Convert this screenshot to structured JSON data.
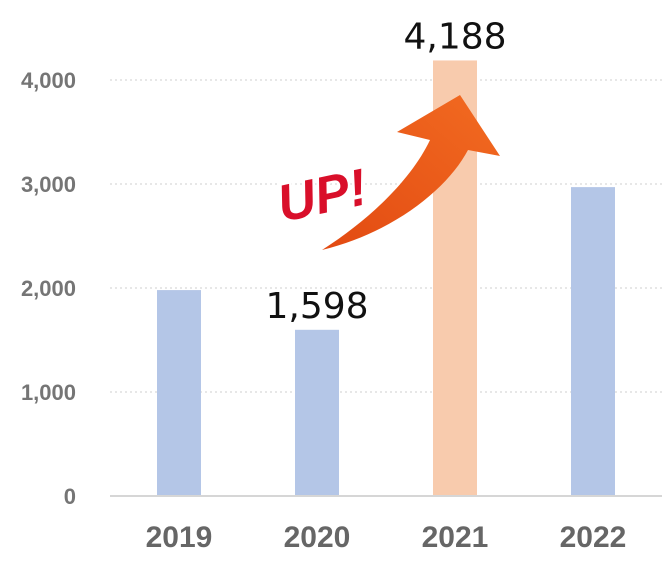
{
  "chart_data": {
    "type": "bar",
    "categories": [
      "2019",
      "2020",
      "2021",
      "2022"
    ],
    "values": [
      1980,
      1598,
      4188,
      2970
    ],
    "ylim": [
      0,
      4000
    ],
    "yticks": [
      {
        "value": 0,
        "label": "0"
      },
      {
        "value": 1000,
        "label": "1,000"
      },
      {
        "value": 2000,
        "label": "2,000"
      },
      {
        "value": 3000,
        "label": "3,000"
      },
      {
        "value": 4000,
        "label": "4,000"
      }
    ],
    "data_labels": [
      {
        "index": 1,
        "text": "1,598"
      },
      {
        "index": 2,
        "text": "4,188"
      }
    ],
    "annotation": {
      "text": "UP!",
      "arrow_color": "#e8531a",
      "text_color": "#d90f2a"
    },
    "grid": true,
    "legend": "none",
    "colors": {
      "default_bar": "#b4c6e7",
      "highlight_bar": "#f8cbad",
      "highlight_index": 2
    }
  }
}
